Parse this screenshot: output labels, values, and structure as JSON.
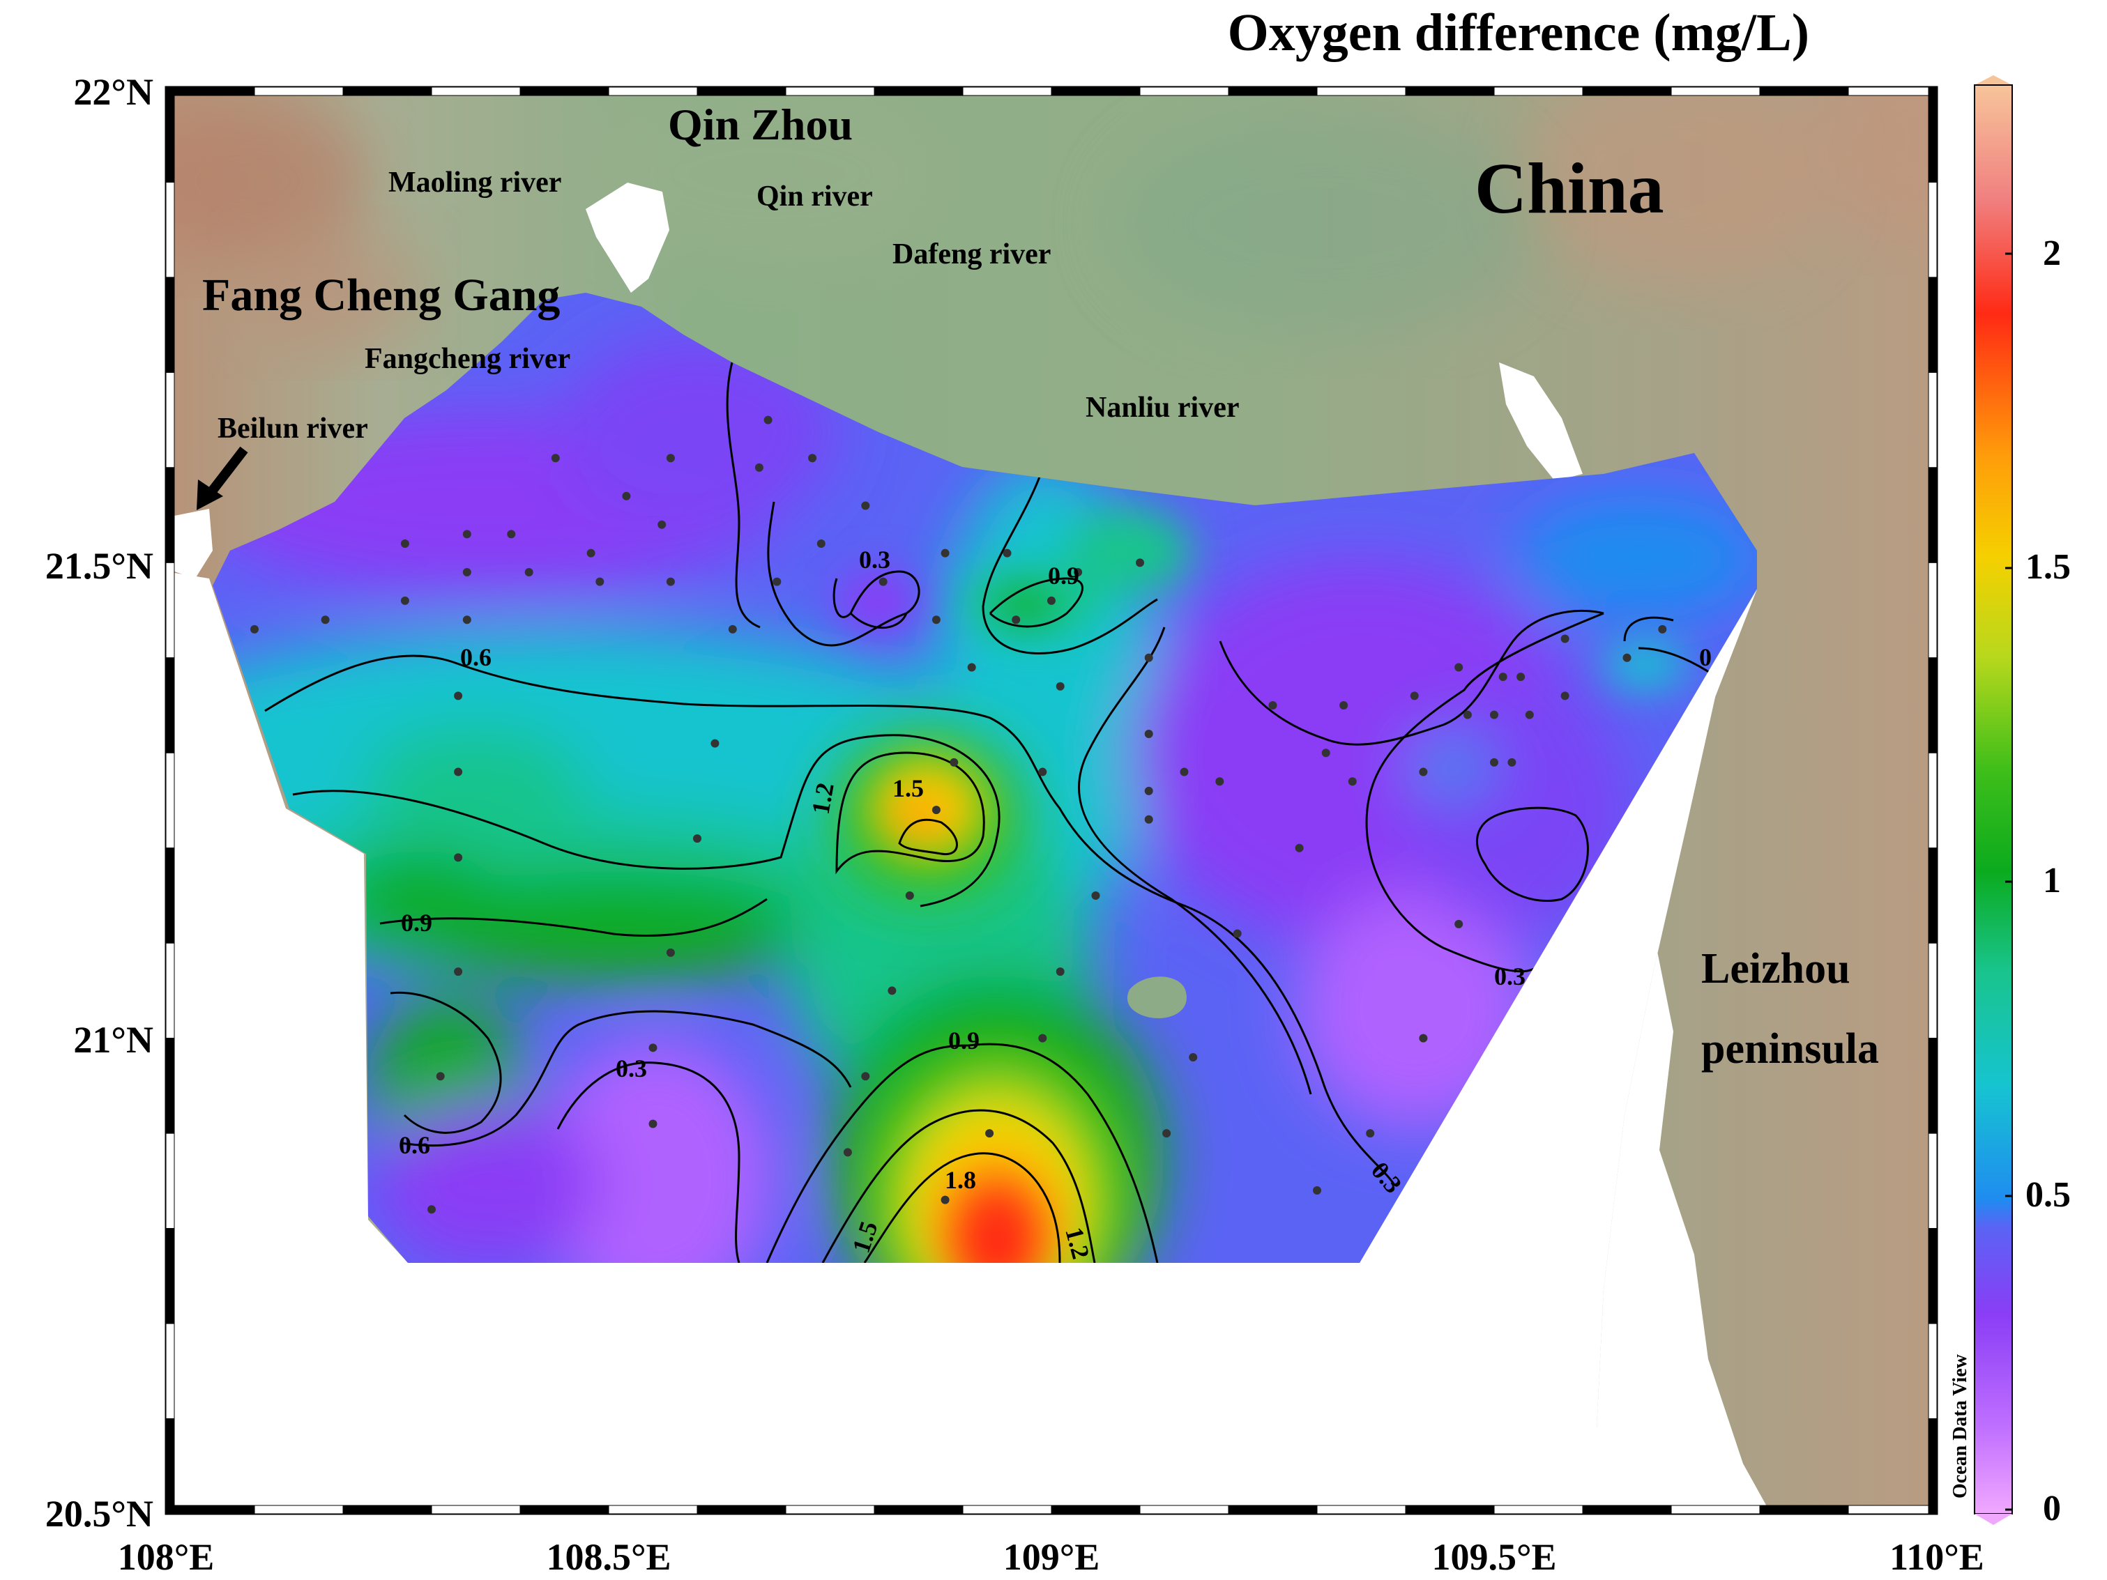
{
  "title": "Oxygen difference (mg/L)",
  "watermark": "Ocean Data View",
  "axes": {
    "lat_ticks": [
      "22°N",
      "21.5°N",
      "21°N",
      "20.5°N"
    ],
    "lon_ticks": [
      "108°E",
      "108.5°E",
      "109°E",
      "109.5°E",
      "110°E"
    ]
  },
  "colorbar": {
    "ticks": [
      "2",
      "1.5",
      "1",
      "0.5",
      "0"
    ],
    "colors": [
      "#f0a8ff",
      "#9b3df5",
      "#5b63f5",
      "#1f8cf0",
      "#16c4d0",
      "#19c48c",
      "#0bab1e",
      "#7fd320",
      "#f5d000",
      "#ff9d0a",
      "#ff2a14",
      "#f08080",
      "#f7c49a"
    ]
  },
  "place_labels": {
    "qin_zhou": "Qin Zhou",
    "china": "China",
    "fang_cheng_gang": "Fang Cheng Gang",
    "maoling_river": "Maoling river",
    "qin_river": "Qin river",
    "dafeng_river": "Dafeng river",
    "fangcheng_river": "Fangcheng river",
    "nanliu_river": "Nanliu river",
    "beilun_river": "Beilun river",
    "leizhou_line1": "Leizhou",
    "leizhou_line2": "peninsula"
  },
  "contour_labels": {
    "c_0_3_north": "0.3",
    "c_0_9_nanliu": "0.9",
    "c_0_6_west": "0.6",
    "c_1_2": "1.2",
    "c_1_5": "1.5",
    "c_0_9_west": "0.9",
    "c_0_9_south": "0.9",
    "c_0_3_south": "0.3",
    "c_0_6_sw": "0.6",
    "c_1_8": "1.8",
    "c_1_5_s": "1.5",
    "c_1_2_s": "1.2",
    "c_0_3_east": "0.3",
    "c_0_3_se": "0.3",
    "c_0_ne": "0"
  },
  "map_data": {
    "variable": "Oxygen difference",
    "unit": "mg/L",
    "lon_range": [
      108,
      110
    ],
    "lat_range": [
      20.5,
      22
    ],
    "color_range": [
      0,
      2.25
    ],
    "stations": [
      [
        108.1,
        21.43
      ],
      [
        108.18,
        21.44
      ],
      [
        108.27,
        21.52
      ],
      [
        108.27,
        21.46
      ],
      [
        108.34,
        21.53
      ],
      [
        108.34,
        21.49
      ],
      [
        108.34,
        21.44
      ],
      [
        108.39,
        21.53
      ],
      [
        108.41,
        21.49
      ],
      [
        108.44,
        21.61
      ],
      [
        108.48,
        21.51
      ],
      [
        108.49,
        21.48
      ],
      [
        108.52,
        21.57
      ],
      [
        108.57,
        21.61
      ],
      [
        108.56,
        21.54
      ],
      [
        108.57,
        21.48
      ],
      [
        108.64,
        21.43
      ],
      [
        108.67,
        21.6
      ],
      [
        108.68,
        21.65
      ],
      [
        108.69,
        21.48
      ],
      [
        108.73,
        21.61
      ],
      [
        108.74,
        21.52
      ],
      [
        108.79,
        21.56
      ],
      [
        108.81,
        21.48
      ],
      [
        108.87,
        21.44
      ],
      [
        108.88,
        21.51
      ],
      [
        108.91,
        21.39
      ],
      [
        108.95,
        21.51
      ],
      [
        108.96,
        21.44
      ],
      [
        109.0,
        21.46
      ],
      [
        109.03,
        21.49
      ],
      [
        109.1,
        21.5
      ],
      [
        108.33,
        21.36
      ],
      [
        108.33,
        21.28
      ],
      [
        108.33,
        21.19
      ],
      [
        108.33,
        21.07
      ],
      [
        108.31,
        20.96
      ],
      [
        108.3,
        20.82
      ],
      [
        108.62,
        21.31
      ],
      [
        108.6,
        21.21
      ],
      [
        108.57,
        21.09
      ],
      [
        108.55,
        20.99
      ],
      [
        108.55,
        20.91
      ],
      [
        108.84,
        21.15
      ],
      [
        108.87,
        21.24
      ],
      [
        108.89,
        21.29
      ],
      [
        108.82,
        21.05
      ],
      [
        108.79,
        20.96
      ],
      [
        108.77,
        20.88
      ],
      [
        108.88,
        20.83
      ],
      [
        108.93,
        20.9
      ],
      [
        108.99,
        21.0
      ],
      [
        109.01,
        21.07
      ],
      [
        108.99,
        21.28
      ],
      [
        109.01,
        21.37
      ],
      [
        109.05,
        21.15
      ],
      [
        109.11,
        21.4
      ],
      [
        109.11,
        21.32
      ],
      [
        109.11,
        21.26
      ],
      [
        109.11,
        21.23
      ],
      [
        109.15,
        21.28
      ],
      [
        109.13,
        20.9
      ],
      [
        109.16,
        20.98
      ],
      [
        109.19,
        21.27
      ],
      [
        109.21,
        21.11
      ],
      [
        109.25,
        21.35
      ],
      [
        109.28,
        21.2
      ],
      [
        109.3,
        20.84
      ],
      [
        109.31,
        21.3
      ],
      [
        109.33,
        21.35
      ],
      [
        109.34,
        21.27
      ],
      [
        109.36,
        20.9
      ],
      [
        109.41,
        21.36
      ],
      [
        109.42,
        21.0
      ],
      [
        109.42,
        21.28
      ],
      [
        109.46,
        21.39
      ],
      [
        109.47,
        21.34
      ],
      [
        109.5,
        21.29
      ],
      [
        109.5,
        21.34
      ],
      [
        109.51,
        21.38
      ],
      [
        109.52,
        21.29
      ],
      [
        109.53,
        21.38
      ],
      [
        109.54,
        21.34
      ],
      [
        109.58,
        21.42
      ],
      [
        109.58,
        21.36
      ],
      [
        109.65,
        21.4
      ],
      [
        109.69,
        21.43
      ],
      [
        109.46,
        21.12
      ]
    ]
  }
}
